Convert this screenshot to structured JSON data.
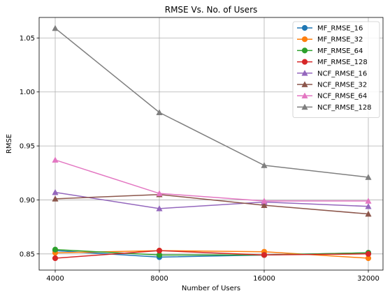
{
  "chart_data": {
    "type": "line",
    "title": "RMSE Vs. No. of Users",
    "xlabel": "Number of Users",
    "ylabel": "RMSE",
    "x": [
      4000,
      8000,
      16000,
      32000
    ],
    "x_tick_labels": [
      "4000",
      "8000",
      "16000",
      "32000"
    ],
    "x_scale": "categorical",
    "ylim": [
      0.835,
      1.069
    ],
    "y_ticks": [
      0.85,
      0.9,
      0.95,
      1.0,
      1.05
    ],
    "y_tick_labels": [
      "0.85",
      "0.90",
      "0.95",
      "1.00",
      "1.05"
    ],
    "grid": true,
    "legend_position": "top-right",
    "series": [
      {
        "name": "MF_RMSE_16",
        "color": "#1f77b4",
        "marker": "circle",
        "values": [
          0.853,
          0.847,
          0.849,
          0.851
        ]
      },
      {
        "name": "MF_RMSE_32",
        "color": "#ff7f0e",
        "marker": "circle",
        "values": [
          0.851,
          0.853,
          0.852,
          0.846
        ]
      },
      {
        "name": "MF_RMSE_64",
        "color": "#2ca02c",
        "marker": "circle",
        "values": [
          0.854,
          0.849,
          0.849,
          0.851
        ]
      },
      {
        "name": "MF_RMSE_128",
        "color": "#d62728",
        "marker": "circle",
        "values": [
          0.846,
          0.853,
          0.849,
          0.85
        ]
      },
      {
        "name": "NCF_RMSE_16",
        "color": "#9467bd",
        "marker": "triangle",
        "values": [
          0.907,
          0.892,
          0.898,
          0.894
        ]
      },
      {
        "name": "NCF_RMSE_32",
        "color": "#8c564b",
        "marker": "triangle",
        "values": [
          0.901,
          0.905,
          0.895,
          0.887
        ]
      },
      {
        "name": "NCF_RMSE_64",
        "color": "#e377c2",
        "marker": "triangle",
        "values": [
          0.937,
          0.906,
          0.899,
          0.899
        ]
      },
      {
        "name": "NCF_RMSE_128",
        "color": "#7f7f7f",
        "marker": "triangle",
        "values": [
          1.059,
          0.981,
          0.932,
          0.921
        ]
      }
    ]
  }
}
